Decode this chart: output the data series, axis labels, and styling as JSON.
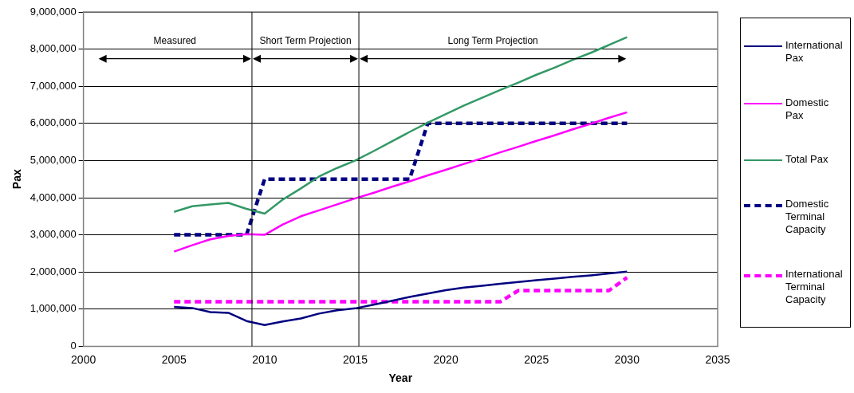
{
  "chart_data": {
    "type": "line",
    "xlabel": "Year",
    "ylabel": "Pax",
    "x": [
      2005,
      2006,
      2007,
      2008,
      2009,
      2010,
      2011,
      2012,
      2013,
      2014,
      2015,
      2016,
      2017,
      2018,
      2019,
      2020,
      2021,
      2022,
      2023,
      2024,
      2025,
      2026,
      2027,
      2028,
      2029,
      2030
    ],
    "series": [
      {
        "name": "International Pax",
        "color": "#000080",
        "line_style": "solid",
        "values": [
          1060000,
          1030000,
          920000,
          900000,
          680000,
          570000,
          670000,
          750000,
          880000,
          970000,
          1020000,
          1120000,
          1220000,
          1330000,
          1420000,
          1510000,
          1580000,
          1630000,
          1680000,
          1730000,
          1780000,
          1820000,
          1870000,
          1910000,
          1960000,
          2010000
        ]
      },
      {
        "name": "Domestic Pax",
        "color": "#ff00ff",
        "line_style": "solid",
        "values": [
          2550000,
          2720000,
          2880000,
          2970000,
          3020000,
          3000000,
          3280000,
          3500000,
          3660000,
          3820000,
          3980000,
          4130000,
          4290000,
          4440000,
          4600000,
          4750000,
          4910000,
          5060000,
          5220000,
          5370000,
          5530000,
          5680000,
          5840000,
          5990000,
          6150000,
          6300000
        ]
      },
      {
        "name": "Total Pax",
        "color": "#339966",
        "line_style": "solid",
        "values": [
          3620000,
          3770000,
          3820000,
          3860000,
          3700000,
          3570000,
          3950000,
          4250000,
          4570000,
          4800000,
          5000000,
          5250000,
          5510000,
          5770000,
          6020000,
          6250000,
          6480000,
          6690000,
          6900000,
          7100000,
          7310000,
          7500000,
          7710000,
          7900000,
          8110000,
          8320000
        ]
      },
      {
        "name": "Domestic Terminal Capacity",
        "color": "#000080",
        "line_style": "dashed",
        "values": [
          3000000,
          3000000,
          3000000,
          3000000,
          3000000,
          4500000,
          4500000,
          4500000,
          4500000,
          4500000,
          4500000,
          4500000,
          4500000,
          4500000,
          6000000,
          6000000,
          6000000,
          6000000,
          6000000,
          6000000,
          6000000,
          6000000,
          6000000,
          6000000,
          6000000,
          6000000
        ]
      },
      {
        "name": "International Terminal Capacity",
        "color": "#ff00ff",
        "line_style": "dashed",
        "values": [
          1200000,
          1200000,
          1200000,
          1200000,
          1200000,
          1200000,
          1200000,
          1200000,
          1200000,
          1200000,
          1200000,
          1200000,
          1200000,
          1200000,
          1200000,
          1200000,
          1200000,
          1200000,
          1200000,
          1500000,
          1500000,
          1500000,
          1500000,
          1500000,
          1500000,
          1850000
        ]
      }
    ],
    "xlim": [
      2000,
      2035
    ],
    "xticks": [
      2000,
      2005,
      2010,
      2015,
      2020,
      2025,
      2030,
      2035
    ],
    "ylim": [
      0,
      9000000
    ],
    "yticks": [
      {
        "value": 0,
        "label": "0"
      },
      {
        "value": 1000000,
        "label": "1,000,000"
      },
      {
        "value": 2000000,
        "label": "2,000,000"
      },
      {
        "value": 3000000,
        "label": "3,000,000"
      },
      {
        "value": 4000000,
        "label": "4,000,000"
      },
      {
        "value": 5000000,
        "label": "5,000,000"
      },
      {
        "value": 6000000,
        "label": "6,000,000"
      },
      {
        "value": 7000000,
        "label": "7,000,000"
      },
      {
        "value": 8000000,
        "label": "8,000,000"
      },
      {
        "value": 9000000,
        "label": "9,000,000"
      }
    ],
    "ref_lines": [
      {
        "axis": "x",
        "value": 2009.3,
        "color": "#000000"
      },
      {
        "axis": "x",
        "value": 2015.2,
        "color": "#000000"
      }
    ],
    "annotations": [
      "Measured",
      "Short Term Projection",
      "Long Term Projection"
    ],
    "grid": "y",
    "legend": "right",
    "marker": "none"
  }
}
